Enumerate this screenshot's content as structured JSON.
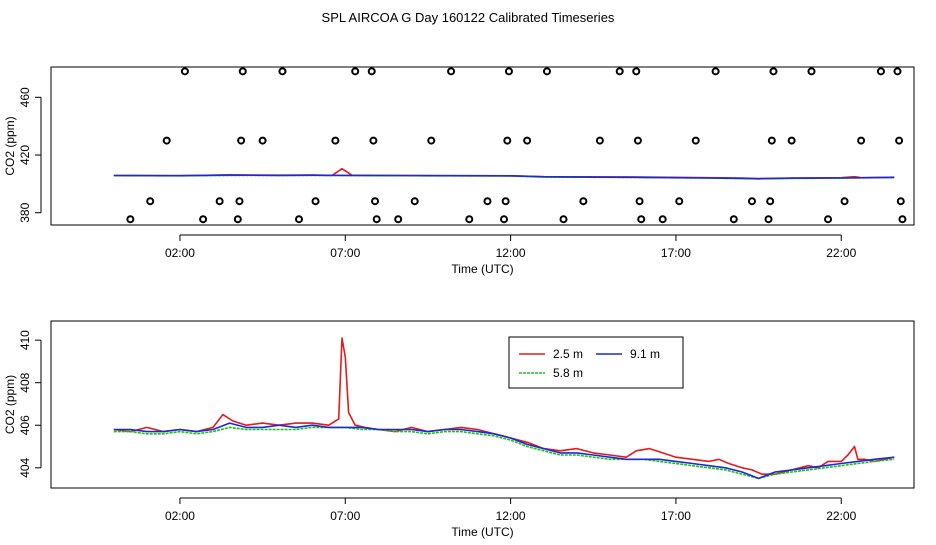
{
  "figure_title": "SPL AIRCOA G  Day 160122  Calibrated Timeseries",
  "colors": {
    "axis": "#000000",
    "red": "#e41a1c",
    "green": "#1fbf1f",
    "blue": "#1a2bd6"
  },
  "chart_data": [
    {
      "type": "scatter",
      "panel": "top",
      "title": "",
      "xlabel": "Time (UTC)",
      "ylabel": "CO2 (ppm)",
      "xlim": [
        -1.9,
        24.2
      ],
      "ylim": [
        371.5,
        481
      ],
      "x_ticks": [
        2,
        7,
        12,
        17,
        22
      ],
      "x_tick_labels": [
        "02:00",
        "07:00",
        "12:00",
        "17:00",
        "22:00"
      ],
      "y_ticks": [
        380,
        420,
        460
      ],
      "y_tick_labels": [
        "380",
        "420",
        "460"
      ],
      "reference_points": [
        {
          "x": 0.5,
          "y": 375.5
        },
        {
          "x": 1.1,
          "y": 388
        },
        {
          "x": 1.6,
          "y": 430
        },
        {
          "x": 2.15,
          "y": 478
        },
        {
          "x": 2.7,
          "y": 375.5
        },
        {
          "x": 3.2,
          "y": 388
        },
        {
          "x": 3.75,
          "y": 375.5
        },
        {
          "x": 3.8,
          "y": 388
        },
        {
          "x": 3.85,
          "y": 430
        },
        {
          "x": 3.9,
          "y": 478
        },
        {
          "x": 4.5,
          "y": 430
        },
        {
          "x": 5.1,
          "y": 478
        },
        {
          "x": 5.6,
          "y": 375.5
        },
        {
          "x": 6.1,
          "y": 388
        },
        {
          "x": 6.7,
          "y": 430
        },
        {
          "x": 7.3,
          "y": 478
        },
        {
          "x": 7.8,
          "y": 478
        },
        {
          "x": 7.85,
          "y": 430
        },
        {
          "x": 7.9,
          "y": 388
        },
        {
          "x": 7.95,
          "y": 375.5
        },
        {
          "x": 8.6,
          "y": 375.5
        },
        {
          "x": 9.1,
          "y": 388
        },
        {
          "x": 9.6,
          "y": 430
        },
        {
          "x": 10.2,
          "y": 478
        },
        {
          "x": 10.75,
          "y": 375.5
        },
        {
          "x": 11.3,
          "y": 388
        },
        {
          "x": 11.8,
          "y": 375.5
        },
        {
          "x": 11.85,
          "y": 388
        },
        {
          "x": 11.9,
          "y": 430
        },
        {
          "x": 11.95,
          "y": 478
        },
        {
          "x": 12.5,
          "y": 430
        },
        {
          "x": 13.1,
          "y": 478
        },
        {
          "x": 13.6,
          "y": 375.5
        },
        {
          "x": 14.2,
          "y": 388
        },
        {
          "x": 14.7,
          "y": 430
        },
        {
          "x": 15.3,
          "y": 478
        },
        {
          "x": 15.8,
          "y": 478
        },
        {
          "x": 15.85,
          "y": 430
        },
        {
          "x": 15.9,
          "y": 388
        },
        {
          "x": 15.95,
          "y": 375.5
        },
        {
          "x": 16.6,
          "y": 375.5
        },
        {
          "x": 17.1,
          "y": 388
        },
        {
          "x": 17.6,
          "y": 430
        },
        {
          "x": 18.2,
          "y": 478
        },
        {
          "x": 18.75,
          "y": 375.5
        },
        {
          "x": 19.3,
          "y": 388
        },
        {
          "x": 19.8,
          "y": 375.5
        },
        {
          "x": 19.85,
          "y": 388
        },
        {
          "x": 19.9,
          "y": 430
        },
        {
          "x": 19.95,
          "y": 478
        },
        {
          "x": 20.5,
          "y": 430
        },
        {
          "x": 21.1,
          "y": 478
        },
        {
          "x": 21.6,
          "y": 375.5
        },
        {
          "x": 22.1,
          "y": 388
        },
        {
          "x": 22.6,
          "y": 430
        },
        {
          "x": 23.2,
          "y": 478
        },
        {
          "x": 23.7,
          "y": 478
        },
        {
          "x": 23.75,
          "y": 430
        },
        {
          "x": 23.8,
          "y": 388
        },
        {
          "x": 23.85,
          "y": 375.5
        }
      ],
      "series": [
        {
          "name": "2.5 m",
          "color": "#e41a1c",
          "x": [
            0,
            2,
            3.5,
            5,
            6,
            6.6,
            6.9,
            7.2,
            8,
            10,
            12,
            13,
            14,
            16,
            18,
            19,
            19.5,
            20.5,
            22,
            22.4,
            22.6,
            23.6
          ],
          "y": [
            405.8,
            405.7,
            406.2,
            406.0,
            406.1,
            405.9,
            410.5,
            406.0,
            405.9,
            405.7,
            405.6,
            405.0,
            404.9,
            404.8,
            404.3,
            404.0,
            403.7,
            404.0,
            404.3,
            405.0,
            404.3,
            404.6
          ]
        },
        {
          "name": "5.8 m",
          "color": "#1fbf1f",
          "x": [
            0,
            2,
            3.5,
            5,
            6,
            7,
            8,
            10,
            12,
            13,
            14,
            16,
            18,
            19,
            19.5,
            20.5,
            22,
            23.6
          ],
          "y": [
            405.7,
            405.6,
            405.8,
            405.8,
            405.9,
            405.8,
            405.7,
            405.6,
            405.5,
            404.8,
            404.6,
            404.4,
            404.0,
            403.7,
            403.5,
            403.8,
            404.0,
            404.4
          ]
        },
        {
          "name": "9.1 m",
          "color": "#1a2bd6",
          "x": [
            0,
            2,
            3.5,
            5,
            6,
            7,
            8,
            10,
            12,
            13,
            14,
            16,
            18,
            19,
            19.5,
            20.5,
            22,
            23.6
          ],
          "y": [
            405.8,
            405.7,
            406.1,
            405.9,
            406.0,
            405.9,
            405.8,
            405.7,
            405.6,
            404.9,
            404.7,
            404.5,
            404.1,
            403.8,
            403.5,
            403.9,
            404.1,
            404.5
          ]
        }
      ]
    },
    {
      "type": "line",
      "panel": "bottom",
      "title": "",
      "xlabel": "Time (UTC)",
      "ylabel": "CO2 (ppm)",
      "xlim": [
        -1.9,
        24.2
      ],
      "ylim": [
        403.05,
        410.9
      ],
      "x_ticks": [
        2,
        7,
        12,
        17,
        22
      ],
      "x_tick_labels": [
        "02:00",
        "07:00",
        "12:00",
        "17:00",
        "22:00"
      ],
      "y_ticks": [
        404,
        406,
        408,
        410
      ],
      "y_tick_labels": [
        "404",
        "406",
        "408",
        "410"
      ],
      "legend": {
        "placement": "top-center",
        "entries": [
          "2.5 m",
          "9.1 m",
          "5.8 m"
        ]
      },
      "series": [
        {
          "name": "2.5 m",
          "color": "#e41a1c",
          "x": [
            0,
            0.5,
            1,
            1.5,
            2,
            2.5,
            3,
            3.3,
            3.6,
            4,
            4.5,
            5,
            5.5,
            6,
            6.5,
            6.8,
            6.9,
            7.0,
            7.1,
            7.3,
            7.6,
            8,
            8.5,
            9,
            9.5,
            10,
            10.5,
            11,
            11.5,
            12,
            12.5,
            13,
            13.5,
            14,
            14.5,
            15,
            15.5,
            15.8,
            16.2,
            16.6,
            17,
            17.5,
            18,
            18.3,
            18.6,
            19,
            19.3,
            19.6,
            20,
            20.5,
            21,
            21.3,
            21.6,
            22,
            22.2,
            22.4,
            22.5,
            22.7,
            23,
            23.3,
            23.6
          ],
          "y": [
            405.8,
            405.7,
            405.9,
            405.7,
            405.8,
            405.7,
            405.9,
            406.5,
            406.2,
            406.0,
            406.1,
            406.0,
            406.1,
            406.1,
            406.0,
            406.3,
            410.1,
            409.2,
            406.6,
            406.0,
            405.9,
            405.8,
            405.7,
            405.9,
            405.7,
            405.8,
            405.9,
            405.8,
            405.6,
            405.4,
            405.2,
            404.9,
            404.8,
            404.9,
            404.7,
            404.6,
            404.5,
            404.8,
            404.9,
            404.7,
            404.5,
            404.4,
            404.3,
            404.4,
            404.2,
            404.0,
            403.9,
            403.7,
            403.7,
            403.9,
            404.1,
            404.0,
            404.3,
            404.3,
            404.6,
            405.0,
            404.4,
            404.4,
            404.3,
            404.4,
            404.5
          ]
        },
        {
          "name": "5.8 m",
          "color": "#1fbf1f",
          "x": [
            0,
            0.5,
            1,
            1.5,
            2,
            2.5,
            3,
            3.5,
            4,
            4.5,
            5,
            5.5,
            6,
            6.5,
            7,
            7.5,
            8,
            8.5,
            9,
            9.5,
            10,
            10.5,
            11,
            11.5,
            12,
            12.5,
            13,
            13.5,
            14,
            14.5,
            15,
            15.5,
            16,
            16.5,
            17,
            17.5,
            18,
            18.5,
            19,
            19.5,
            20,
            20.5,
            21,
            21.5,
            22,
            22.5,
            23,
            23.6
          ],
          "y": [
            405.7,
            405.7,
            405.6,
            405.6,
            405.7,
            405.6,
            405.7,
            405.9,
            405.8,
            405.8,
            405.8,
            405.8,
            405.9,
            405.9,
            405.9,
            405.8,
            405.8,
            405.7,
            405.7,
            405.6,
            405.7,
            405.7,
            405.6,
            405.5,
            405.3,
            405.0,
            404.8,
            404.6,
            404.6,
            404.5,
            404.4,
            404.4,
            404.4,
            404.3,
            404.2,
            404.1,
            404.0,
            403.9,
            403.7,
            403.5,
            403.7,
            403.8,
            403.9,
            404.0,
            404.1,
            404.2,
            404.3,
            404.4
          ]
        },
        {
          "name": "9.1 m",
          "color": "#1a2bd6",
          "x": [
            0,
            0.5,
            1,
            1.5,
            2,
            2.5,
            3,
            3.5,
            4,
            4.5,
            5,
            5.5,
            6,
            6.5,
            7,
            7.5,
            8,
            8.5,
            9,
            9.5,
            10,
            10.5,
            11,
            11.5,
            12,
            12.5,
            13,
            13.5,
            14,
            14.5,
            15,
            15.5,
            16,
            16.5,
            17,
            17.5,
            18,
            18.5,
            19,
            19.5,
            20,
            20.5,
            21,
            21.5,
            22,
            22.5,
            23,
            23.6
          ],
          "y": [
            405.8,
            405.8,
            405.7,
            405.7,
            405.8,
            405.7,
            405.8,
            406.1,
            405.9,
            405.9,
            406.0,
            405.9,
            406.0,
            405.9,
            405.9,
            405.9,
            405.8,
            405.8,
            405.8,
            405.7,
            405.8,
            405.8,
            405.7,
            405.6,
            405.4,
            405.1,
            404.9,
            404.7,
            404.7,
            404.6,
            404.5,
            404.4,
            404.4,
            404.4,
            404.3,
            404.2,
            404.1,
            404.0,
            403.8,
            403.5,
            403.8,
            403.9,
            404.0,
            404.1,
            404.2,
            404.3,
            404.4,
            404.5
          ]
        }
      ]
    }
  ]
}
